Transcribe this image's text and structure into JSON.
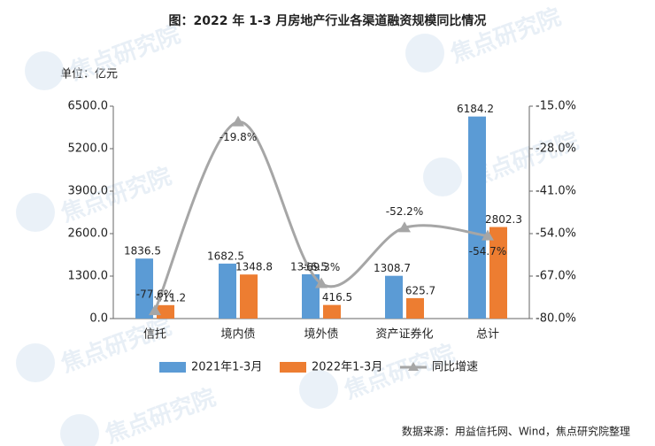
{
  "chart_data": {
    "type": "bar-line",
    "title": "图：2022 年 1-3 月房地产行业各渠道融资规模同比情况",
    "unit_label": "单位：亿元",
    "source": "数据来源：用益信托网、Wind，焦点研究院整理",
    "watermark": "焦点研究院",
    "categories": [
      "信托",
      "境内债",
      "境外债",
      "资产证券化",
      "总计"
    ],
    "series": [
      {
        "name": "2021年1-3月",
        "color": "#5b9bd5",
        "values": [
          1836.5,
          1682.5,
          1356.5,
          1308.7,
          6184.2
        ]
      },
      {
        "name": "2022年1-3月",
        "color": "#ed7d31",
        "values": [
          411.2,
          1348.8,
          416.5,
          625.7,
          2802.3
        ]
      },
      {
        "name": "同比增速",
        "color": "#a6a6a6",
        "axis": "y2",
        "values": [
          -77.6,
          -19.8,
          -69.3,
          -52.2,
          -54.7
        ],
        "value_labels": [
          "-77.6%",
          "-19.8%",
          "-69.3%",
          "-52.2%",
          "-54.7%"
        ]
      }
    ],
    "ylim": [
      0,
      6500
    ],
    "yticks": [
      {
        "value": 0,
        "label": "0.0"
      },
      {
        "value": 1300,
        "label": "1300.0"
      },
      {
        "value": 2600,
        "label": "2600.0"
      },
      {
        "value": 3900,
        "label": "3900.0"
      },
      {
        "value": 5200,
        "label": "5200.0"
      },
      {
        "value": 6500,
        "label": "6500.0"
      }
    ],
    "y2lim": [
      -80,
      -15
    ],
    "y2ticks": [
      {
        "value": -80,
        "label": "-80.0%"
      },
      {
        "value": -67,
        "label": "-67.0%"
      },
      {
        "value": -54,
        "label": "-54.0%"
      },
      {
        "value": -41,
        "label": "-41.0%"
      },
      {
        "value": -28,
        "label": "-28.0%"
      },
      {
        "value": -15,
        "label": "-15.0%"
      }
    ],
    "legend": "bottom"
  }
}
